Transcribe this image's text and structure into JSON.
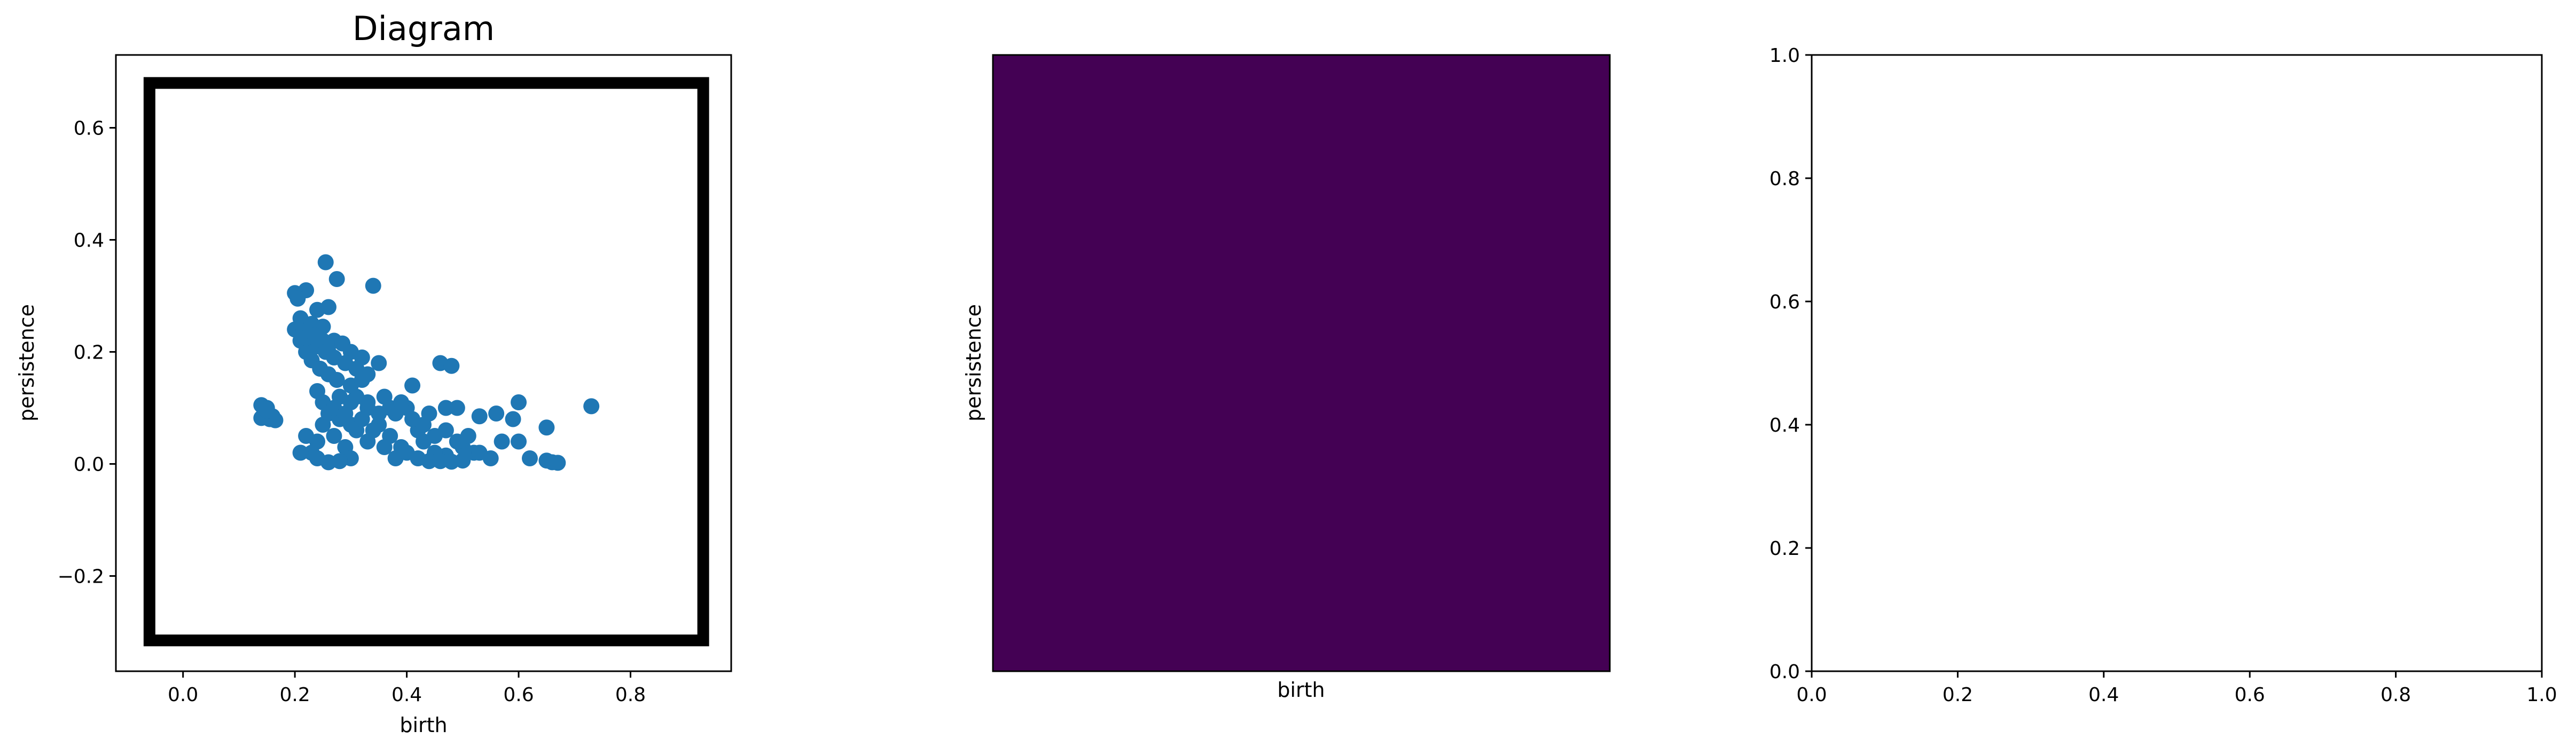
{
  "figure": {
    "background": "#ffffff"
  },
  "chart_data": [
    {
      "type": "scatter",
      "title": "Diagram",
      "xlabel": "birth",
      "ylabel": "persistence",
      "xlim": [
        -0.12,
        0.98
      ],
      "ylim": [
        -0.37,
        0.73
      ],
      "xticks": [
        0.0,
        0.2,
        0.4,
        0.6,
        0.8
      ],
      "xtick_labels": [
        "0.0",
        "0.2",
        "0.4",
        "0.6",
        "0.8"
      ],
      "yticks": [
        -0.2,
        0.0,
        0.2,
        0.4,
        0.6
      ],
      "ytick_labels": [
        "−0.2",
        "0.0",
        "0.2",
        "0.4",
        "0.6"
      ],
      "marker_color": "#1f77b4",
      "frame": {
        "x_range": [
          -0.06,
          0.93
        ],
        "y_range": [
          -0.315,
          0.68
        ],
        "color": "#000000"
      },
      "series": [
        {
          "points": [
            [
              0.255,
              0.36
            ],
            [
              0.34,
              0.318
            ],
            [
              0.275,
              0.33
            ],
            [
              0.22,
              0.31
            ],
            [
              0.2,
              0.305
            ],
            [
              0.205,
              0.295
            ],
            [
              0.26,
              0.28
            ],
            [
              0.24,
              0.275
            ],
            [
              0.21,
              0.26
            ],
            [
              0.23,
              0.25
            ],
            [
              0.2,
              0.24
            ],
            [
              0.215,
              0.235
            ],
            [
              0.25,
              0.245
            ],
            [
              0.21,
              0.22
            ],
            [
              0.24,
              0.21
            ],
            [
              0.22,
              0.2
            ],
            [
              0.26,
              0.2
            ],
            [
              0.23,
              0.185
            ],
            [
              0.245,
              0.17
            ],
            [
              0.27,
              0.22
            ],
            [
              0.285,
              0.215
            ],
            [
              0.3,
              0.2
            ],
            [
              0.32,
              0.19
            ],
            [
              0.35,
              0.18
            ],
            [
              0.26,
              0.16
            ],
            [
              0.275,
              0.15
            ],
            [
              0.3,
              0.14
            ],
            [
              0.32,
              0.15
            ],
            [
              0.28,
              0.12
            ],
            [
              0.3,
              0.11
            ],
            [
              0.33,
              0.1
            ],
            [
              0.36,
              0.12
            ],
            [
              0.38,
              0.09
            ],
            [
              0.41,
              0.14
            ],
            [
              0.4,
              0.1
            ],
            [
              0.44,
              0.09
            ],
            [
              0.46,
              0.18
            ],
            [
              0.48,
              0.175
            ],
            [
              0.47,
              0.1
            ],
            [
              0.49,
              0.1
            ],
            [
              0.53,
              0.085
            ],
            [
              0.56,
              0.09
            ],
            [
              0.6,
              0.11
            ],
            [
              0.73,
              0.103
            ],
            [
              0.59,
              0.08
            ],
            [
              0.57,
              0.04
            ],
            [
              0.6,
              0.04
            ],
            [
              0.65,
              0.065
            ],
            [
              0.62,
              0.01
            ],
            [
              0.65,
              0.006
            ],
            [
              0.66,
              0.003
            ],
            [
              0.67,
              0.002
            ],
            [
              0.55,
              0.01
            ],
            [
              0.52,
              0.02
            ],
            [
              0.5,
              0.03
            ],
            [
              0.47,
              0.015
            ],
            [
              0.45,
              0.02
            ],
            [
              0.43,
              0.04
            ],
            [
              0.42,
              0.06
            ],
            [
              0.39,
              0.03
            ],
            [
              0.37,
              0.05
            ],
            [
              0.35,
              0.07
            ],
            [
              0.33,
              0.04
            ],
            [
              0.31,
              0.06
            ],
            [
              0.29,
              0.03
            ],
            [
              0.27,
              0.05
            ],
            [
              0.25,
              0.07
            ],
            [
              0.24,
              0.04
            ],
            [
              0.22,
              0.05
            ],
            [
              0.23,
              0.02
            ],
            [
              0.21,
              0.02
            ],
            [
              0.26,
              0.09
            ],
            [
              0.28,
              0.08
            ],
            [
              0.3,
              0.07
            ],
            [
              0.32,
              0.08
            ],
            [
              0.34,
              0.06
            ],
            [
              0.36,
              0.03
            ],
            [
              0.38,
              0.01
            ],
            [
              0.4,
              0.02
            ],
            [
              0.42,
              0.01
            ],
            [
              0.44,
              0.005
            ],
            [
              0.46,
              0.005
            ],
            [
              0.48,
              0.004
            ],
            [
              0.5,
              0.006
            ],
            [
              0.3,
              0.01
            ],
            [
              0.28,
              0.005
            ],
            [
              0.26,
              0.003
            ],
            [
              0.24,
              0.01
            ],
            [
              0.14,
              0.105
            ],
            [
              0.15,
              0.1
            ],
            [
              0.145,
              0.09
            ],
            [
              0.16,
              0.085
            ],
            [
              0.155,
              0.08
            ],
            [
              0.165,
              0.078
            ],
            [
              0.14,
              0.082
            ],
            [
              0.15,
              0.095
            ],
            [
              0.24,
              0.13
            ],
            [
              0.25,
              0.11
            ],
            [
              0.27,
              0.1
            ],
            [
              0.29,
              0.09
            ],
            [
              0.31,
              0.12
            ],
            [
              0.33,
              0.11
            ],
            [
              0.35,
              0.09
            ],
            [
              0.37,
              0.1
            ],
            [
              0.39,
              0.11
            ],
            [
              0.41,
              0.08
            ],
            [
              0.43,
              0.07
            ],
            [
              0.45,
              0.05
            ],
            [
              0.47,
              0.06
            ],
            [
              0.49,
              0.04
            ],
            [
              0.51,
              0.05
            ],
            [
              0.53,
              0.02
            ],
            [
              0.22,
              0.225
            ],
            [
              0.235,
              0.23
            ],
            [
              0.25,
              0.22
            ],
            [
              0.255,
              0.2
            ],
            [
              0.27,
              0.19
            ],
            [
              0.29,
              0.18
            ],
            [
              0.31,
              0.17
            ],
            [
              0.33,
              0.16
            ]
          ]
        }
      ]
    },
    {
      "type": "heatmap",
      "title": "",
      "xlabel": "birth",
      "ylabel": "persistence",
      "fill_color": "#440154"
    },
    {
      "type": "scatter",
      "title": "",
      "xlabel": "",
      "ylabel": "",
      "xlim": [
        0.0,
        1.0
      ],
      "ylim": [
        0.0,
        1.0
      ],
      "xtick_labels": [
        "0.0",
        "0.2",
        "0.4",
        "0.6",
        "0.8",
        "1.0"
      ],
      "ytick_labels": [
        "0.0",
        "0.2",
        "0.4",
        "0.6",
        "0.8",
        "1.0"
      ],
      "series": []
    }
  ]
}
